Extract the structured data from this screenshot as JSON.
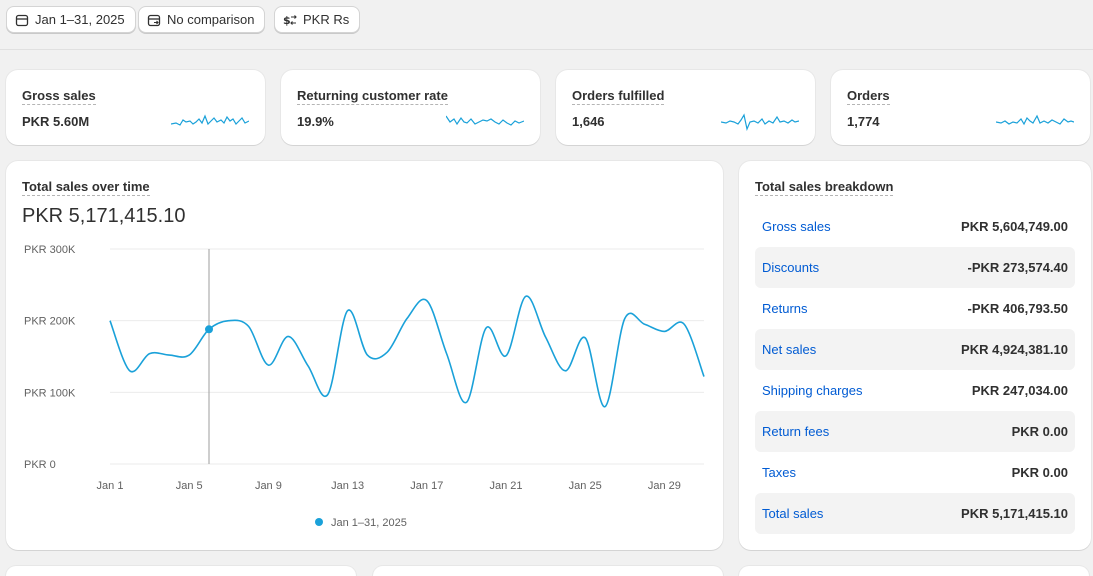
{
  "toolbar": {
    "date_range": "Jan 1–31, 2025",
    "comparison": "No comparison",
    "currency": "PKR Rs"
  },
  "kpis": [
    {
      "title": "Gross sales",
      "value": "PKR 5.60M"
    },
    {
      "title": "Returning customer rate",
      "value": "19.9%"
    },
    {
      "title": "Orders fulfilled",
      "value": "1,646"
    },
    {
      "title": "Orders",
      "value": "1,774"
    }
  ],
  "sales_over_time": {
    "title": "Total sales over time",
    "total": "PKR 5,171,415.10",
    "legend": "Jan 1–31, 2025"
  },
  "chart_data": {
    "type": "line",
    "x": [
      "Jan 1",
      "Jan 2",
      "Jan 3",
      "Jan 4",
      "Jan 5",
      "Jan 6",
      "Jan 7",
      "Jan 8",
      "Jan 9",
      "Jan 10",
      "Jan 11",
      "Jan 12",
      "Jan 13",
      "Jan 14",
      "Jan 15",
      "Jan 16",
      "Jan 17",
      "Jan 18",
      "Jan 19",
      "Jan 20",
      "Jan 21",
      "Jan 22",
      "Jan 23",
      "Jan 24",
      "Jan 25",
      "Jan 26",
      "Jan 27",
      "Jan 28",
      "Jan 29",
      "Jan 30",
      "Jan 31"
    ],
    "series": [
      {
        "name": "Jan 1–31, 2025",
        "color": "#1aa1d9",
        "values": [
          200000,
          130000,
          154000,
          152000,
          152000,
          188000,
          200000,
          192000,
          138000,
          178000,
          137000,
          97000,
          214000,
          152000,
          156000,
          203000,
          228000,
          154000,
          86000,
          190000,
          151000,
          234000,
          177000,
          130000,
          176000,
          80000,
          203000,
          195000,
          185000,
          195000,
          122000
        ]
      }
    ],
    "xtick_labels": [
      "Jan 1",
      "Jan 5",
      "Jan 9",
      "Jan 13",
      "Jan 17",
      "Jan 21",
      "Jan 25",
      "Jan 29"
    ],
    "ytick_labels": [
      "PKR 300K",
      "PKR 200K",
      "PKR 100K",
      "PKR 0"
    ],
    "ylim": [
      0,
      300000
    ],
    "grid": true,
    "highlight_index": 5
  },
  "breakdown": {
    "title": "Total sales breakdown",
    "rows": [
      {
        "label": "Gross sales",
        "value": "PKR 5,604,749.00"
      },
      {
        "label": "Discounts",
        "value": "-PKR 273,574.40"
      },
      {
        "label": "Returns",
        "value": "-PKR 406,793.50"
      },
      {
        "label": "Net sales",
        "value": "PKR 4,924,381.10"
      },
      {
        "label": "Shipping charges",
        "value": "PKR 247,034.00"
      },
      {
        "label": "Return fees",
        "value": "PKR 0.00"
      },
      {
        "label": "Taxes",
        "value": "PKR 0.00"
      },
      {
        "label": "Total sales",
        "value": "PKR 5,171,415.10"
      }
    ]
  },
  "colors": {
    "accent": "#1aa1d9",
    "link": "#005bd3"
  }
}
